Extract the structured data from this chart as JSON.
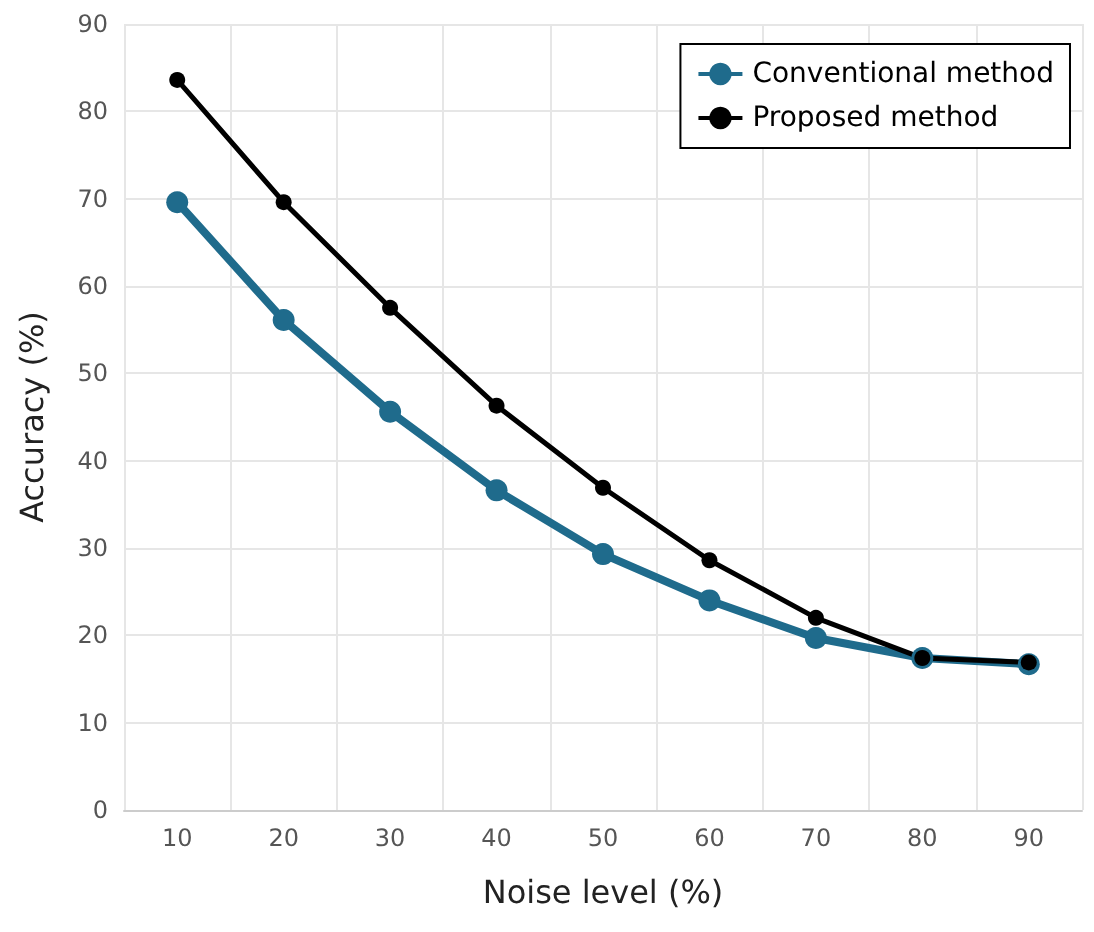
{
  "chart_data": {
    "type": "line",
    "xlabel": "Noise level (%)",
    "ylabel": "Accuracy (%)",
    "categories": [
      "10",
      "20",
      "30",
      "40",
      "50",
      "60",
      "70",
      "80",
      "90"
    ],
    "series": [
      {
        "name": "Conventional method",
        "color": "#1f6b8c",
        "values": [
          69.6,
          56.1,
          45.6,
          36.6,
          29.3,
          24.0,
          19.7,
          17.4,
          16.7
        ]
      },
      {
        "name": "Proposed method",
        "color": "#000000",
        "values": [
          83.6,
          69.6,
          57.5,
          46.3,
          36.9,
          28.6,
          22.0,
          17.4,
          16.9
        ]
      }
    ],
    "ylim": [
      0,
      90
    ],
    "yticks": [
      0,
      10,
      20,
      30,
      40,
      50,
      60,
      70,
      80,
      90
    ],
    "grid": true,
    "legend": "top right",
    "marker": "circle",
    "line_style": "solid"
  }
}
